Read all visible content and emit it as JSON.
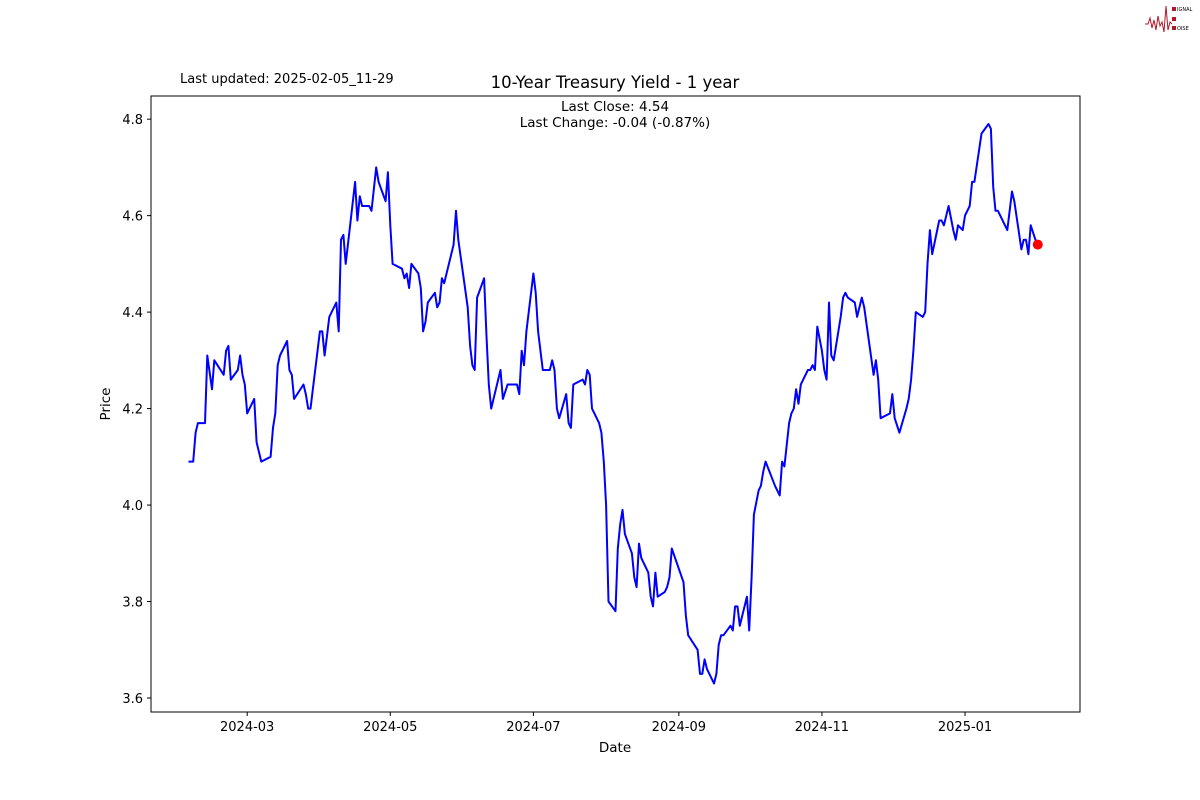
{
  "header": {
    "last_updated": "Last updated: 2025-02-05_11-29"
  },
  "logo": {
    "text": "SIGNAL 2 NOISE",
    "colors": {
      "primary": "#b0182a"
    }
  },
  "chart_data": {
    "type": "line",
    "title": "10-Year Treasury Yield - 1 year",
    "annotation": [
      "Last Close: 4.54",
      "Last Change: -0.04 (-0.87%)"
    ],
    "xlabel": "Date",
    "ylabel": "Price",
    "xlim": [
      "2024-01-20",
      "2025-02-19"
    ],
    "ylim": [
      3.571,
      4.848
    ],
    "grid": false,
    "line_color": "#0000ff",
    "marker_color": "#ff0000",
    "x_ticks": [
      "2024-03",
      "2024-05",
      "2024-07",
      "2024-09",
      "2024-11",
      "2025-01"
    ],
    "y_ticks": [
      "3.6",
      "3.8",
      "4.0",
      "4.2",
      "4.4",
      "4.6",
      "4.8"
    ],
    "last_point": {
      "date": "2025-02-01",
      "value": 4.54
    },
    "series": [
      {
        "points": [
          [
            "2024-02-05",
            4.09
          ],
          [
            "2024-02-07",
            4.09
          ],
          [
            "2024-02-08",
            4.15
          ],
          [
            "2024-02-09",
            4.17
          ],
          [
            "2024-02-12",
            4.17
          ],
          [
            "2024-02-13",
            4.31
          ],
          [
            "2024-02-15",
            4.24
          ],
          [
            "2024-02-16",
            4.3
          ],
          [
            "2024-02-20",
            4.27
          ],
          [
            "2024-02-21",
            4.32
          ],
          [
            "2024-02-22",
            4.33
          ],
          [
            "2024-02-23",
            4.26
          ],
          [
            "2024-02-26",
            4.28
          ],
          [
            "2024-02-27",
            4.31
          ],
          [
            "2024-02-28",
            4.27
          ],
          [
            "2024-02-29",
            4.25
          ],
          [
            "2024-03-01",
            4.19
          ],
          [
            "2024-03-04",
            4.22
          ],
          [
            "2024-03-05",
            4.13
          ],
          [
            "2024-03-07",
            4.09
          ],
          [
            "2024-03-11",
            4.1
          ],
          [
            "2024-03-12",
            4.16
          ],
          [
            "2024-03-13",
            4.19
          ],
          [
            "2024-03-14",
            4.29
          ],
          [
            "2024-03-15",
            4.31
          ],
          [
            "2024-03-18",
            4.34
          ],
          [
            "2024-03-19",
            4.28
          ],
          [
            "2024-03-20",
            4.27
          ],
          [
            "2024-03-21",
            4.22
          ],
          [
            "2024-03-25",
            4.25
          ],
          [
            "2024-03-26",
            4.23
          ],
          [
            "2024-03-27",
            4.2
          ],
          [
            "2024-03-28",
            4.2
          ],
          [
            "2024-04-01",
            4.36
          ],
          [
            "2024-04-02",
            4.36
          ],
          [
            "2024-04-03",
            4.31
          ],
          [
            "2024-04-05",
            4.39
          ],
          [
            "2024-04-08",
            4.42
          ],
          [
            "2024-04-09",
            4.36
          ],
          [
            "2024-04-10",
            4.55
          ],
          [
            "2024-04-11",
            4.56
          ],
          [
            "2024-04-12",
            4.5
          ],
          [
            "2024-04-16",
            4.67
          ],
          [
            "2024-04-17",
            4.59
          ],
          [
            "2024-04-18",
            4.64
          ],
          [
            "2024-04-19",
            4.62
          ],
          [
            "2024-04-22",
            4.62
          ],
          [
            "2024-04-23",
            4.61
          ],
          [
            "2024-04-25",
            4.7
          ],
          [
            "2024-04-26",
            4.67
          ],
          [
            "2024-04-29",
            4.63
          ],
          [
            "2024-04-30",
            4.69
          ],
          [
            "2024-05-01",
            4.58
          ],
          [
            "2024-05-02",
            4.5
          ],
          [
            "2024-05-06",
            4.49
          ],
          [
            "2024-05-07",
            4.47
          ],
          [
            "2024-05-08",
            4.48
          ],
          [
            "2024-05-09",
            4.45
          ],
          [
            "2024-05-10",
            4.5
          ],
          [
            "2024-05-13",
            4.48
          ],
          [
            "2024-05-14",
            4.45
          ],
          [
            "2024-05-15",
            4.36
          ],
          [
            "2024-05-16",
            4.38
          ],
          [
            "2024-05-17",
            4.42
          ],
          [
            "2024-05-20",
            4.44
          ],
          [
            "2024-05-21",
            4.41
          ],
          [
            "2024-05-22",
            4.42
          ],
          [
            "2024-05-23",
            4.47
          ],
          [
            "2024-05-24",
            4.46
          ],
          [
            "2024-05-28",
            4.54
          ],
          [
            "2024-05-29",
            4.61
          ],
          [
            "2024-05-30",
            4.55
          ],
          [
            "2024-06-03",
            4.41
          ],
          [
            "2024-06-04",
            4.33
          ],
          [
            "2024-06-05",
            4.29
          ],
          [
            "2024-06-06",
            4.28
          ],
          [
            "2024-06-07",
            4.43
          ],
          [
            "2024-06-10",
            4.47
          ],
          [
            "2024-06-11",
            4.35
          ],
          [
            "2024-06-12",
            4.25
          ],
          [
            "2024-06-13",
            4.2
          ],
          [
            "2024-06-17",
            4.28
          ],
          [
            "2024-06-18",
            4.22
          ],
          [
            "2024-06-20",
            4.25
          ],
          [
            "2024-06-24",
            4.25
          ],
          [
            "2024-06-25",
            4.23
          ],
          [
            "2024-06-26",
            4.32
          ],
          [
            "2024-06-27",
            4.29
          ],
          [
            "2024-06-28",
            4.36
          ],
          [
            "2024-07-01",
            4.48
          ],
          [
            "2024-07-02",
            4.44
          ],
          [
            "2024-07-03",
            4.36
          ],
          [
            "2024-07-05",
            4.28
          ],
          [
            "2024-07-08",
            4.28
          ],
          [
            "2024-07-09",
            4.3
          ],
          [
            "2024-07-10",
            4.28
          ],
          [
            "2024-07-11",
            4.2
          ],
          [
            "2024-07-12",
            4.18
          ],
          [
            "2024-07-15",
            4.23
          ],
          [
            "2024-07-16",
            4.17
          ],
          [
            "2024-07-17",
            4.16
          ],
          [
            "2024-07-18",
            4.25
          ],
          [
            "2024-07-22",
            4.26
          ],
          [
            "2024-07-23",
            4.25
          ],
          [
            "2024-07-24",
            4.28
          ],
          [
            "2024-07-25",
            4.27
          ],
          [
            "2024-07-26",
            4.2
          ],
          [
            "2024-07-29",
            4.17
          ],
          [
            "2024-07-30",
            4.15
          ],
          [
            "2024-07-31",
            4.09
          ],
          [
            "2024-08-01",
            4.0
          ],
          [
            "2024-08-02",
            3.8
          ],
          [
            "2024-08-05",
            3.78
          ],
          [
            "2024-08-06",
            3.91
          ],
          [
            "2024-08-07",
            3.96
          ],
          [
            "2024-08-08",
            3.99
          ],
          [
            "2024-08-09",
            3.94
          ],
          [
            "2024-08-12",
            3.9
          ],
          [
            "2024-08-13",
            3.85
          ],
          [
            "2024-08-14",
            3.83
          ],
          [
            "2024-08-15",
            3.92
          ],
          [
            "2024-08-16",
            3.89
          ],
          [
            "2024-08-19",
            3.86
          ],
          [
            "2024-08-20",
            3.81
          ],
          [
            "2024-08-21",
            3.79
          ],
          [
            "2024-08-22",
            3.86
          ],
          [
            "2024-08-23",
            3.81
          ],
          [
            "2024-08-26",
            3.82
          ],
          [
            "2024-08-27",
            3.83
          ],
          [
            "2024-08-28",
            3.85
          ],
          [
            "2024-08-29",
            3.91
          ],
          [
            "2024-09-03",
            3.84
          ],
          [
            "2024-09-04",
            3.77
          ],
          [
            "2024-09-05",
            3.73
          ],
          [
            "2024-09-09",
            3.7
          ],
          [
            "2024-09-10",
            3.65
          ],
          [
            "2024-09-11",
            3.65
          ],
          [
            "2024-09-12",
            3.68
          ],
          [
            "2024-09-13",
            3.66
          ],
          [
            "2024-09-16",
            3.63
          ],
          [
            "2024-09-17",
            3.65
          ],
          [
            "2024-09-18",
            3.71
          ],
          [
            "2024-09-19",
            3.73
          ],
          [
            "2024-09-20",
            3.73
          ],
          [
            "2024-09-23",
            3.75
          ],
          [
            "2024-09-24",
            3.74
          ],
          [
            "2024-09-25",
            3.79
          ],
          [
            "2024-09-26",
            3.79
          ],
          [
            "2024-09-27",
            3.75
          ],
          [
            "2024-09-30",
            3.81
          ],
          [
            "2024-10-01",
            3.74
          ],
          [
            "2024-10-02",
            3.85
          ],
          [
            "2024-10-03",
            3.98
          ],
          [
            "2024-10-05",
            4.03
          ],
          [
            "2024-10-06",
            4.04
          ],
          [
            "2024-10-07",
            4.07
          ],
          [
            "2024-10-08",
            4.09
          ],
          [
            "2024-10-12",
            4.04
          ],
          [
            "2024-10-14",
            4.02
          ],
          [
            "2024-10-15",
            4.09
          ],
          [
            "2024-10-16",
            4.08
          ],
          [
            "2024-10-18",
            4.17
          ],
          [
            "2024-10-19",
            4.19
          ],
          [
            "2024-10-20",
            4.2
          ],
          [
            "2024-10-21",
            4.24
          ],
          [
            "2024-10-22",
            4.21
          ],
          [
            "2024-10-23",
            4.25
          ],
          [
            "2024-10-26",
            4.28
          ],
          [
            "2024-10-27",
            4.28
          ],
          [
            "2024-10-28",
            4.29
          ],
          [
            "2024-10-29",
            4.28
          ],
          [
            "2024-10-30",
            4.37
          ],
          [
            "2024-11-01",
            4.32
          ],
          [
            "2024-11-02",
            4.28
          ],
          [
            "2024-11-03",
            4.26
          ],
          [
            "2024-11-04",
            4.42
          ],
          [
            "2024-11-05",
            4.31
          ],
          [
            "2024-11-06",
            4.3
          ],
          [
            "2024-11-09",
            4.39
          ],
          [
            "2024-11-10",
            4.43
          ],
          [
            "2024-11-11",
            4.44
          ],
          [
            "2024-11-12",
            4.43
          ],
          [
            "2024-11-15",
            4.42
          ],
          [
            "2024-11-16",
            4.39
          ],
          [
            "2024-11-18",
            4.43
          ],
          [
            "2024-11-19",
            4.41
          ],
          [
            "2024-11-23",
            4.27
          ],
          [
            "2024-11-24",
            4.3
          ],
          [
            "2024-11-25",
            4.26
          ],
          [
            "2024-11-26",
            4.18
          ],
          [
            "2024-11-30",
            4.19
          ],
          [
            "2024-12-01",
            4.23
          ],
          [
            "2024-12-02",
            4.18
          ],
          [
            "2024-12-04",
            4.15
          ],
          [
            "2024-12-07",
            4.2
          ],
          [
            "2024-12-08",
            4.22
          ],
          [
            "2024-12-09",
            4.26
          ],
          [
            "2024-12-10",
            4.32
          ],
          [
            "2024-12-11",
            4.4
          ],
          [
            "2024-12-14",
            4.39
          ],
          [
            "2024-12-15",
            4.4
          ],
          [
            "2024-12-16",
            4.5
          ],
          [
            "2024-12-17",
            4.57
          ],
          [
            "2024-12-18",
            4.52
          ],
          [
            "2024-12-21",
            4.59
          ],
          [
            "2024-12-22",
            4.59
          ],
          [
            "2024-12-23",
            4.58
          ],
          [
            "2024-12-25",
            4.62
          ],
          [
            "2024-12-27",
            4.57
          ],
          [
            "2024-12-28",
            4.55
          ],
          [
            "2024-12-29",
            4.58
          ],
          [
            "2024-12-31",
            4.57
          ],
          [
            "2025-01-01",
            4.6
          ],
          [
            "2025-01-03",
            4.62
          ],
          [
            "2025-01-04",
            4.67
          ],
          [
            "2025-01-05",
            4.67
          ],
          [
            "2025-01-08",
            4.77
          ],
          [
            "2025-01-11",
            4.79
          ],
          [
            "2025-01-12",
            4.78
          ],
          [
            "2025-01-13",
            4.66
          ],
          [
            "2025-01-14",
            4.61
          ],
          [
            "2025-01-15",
            4.61
          ],
          [
            "2025-01-19",
            4.57
          ],
          [
            "2025-01-21",
            4.65
          ],
          [
            "2025-01-22",
            4.63
          ],
          [
            "2025-01-25",
            4.53
          ],
          [
            "2025-01-26",
            4.55
          ],
          [
            "2025-01-27",
            4.55
          ],
          [
            "2025-01-28",
            4.52
          ],
          [
            "2025-01-29",
            4.58
          ],
          [
            "2025-01-31",
            4.55
          ],
          [
            "2025-02-01",
            4.54
          ]
        ]
      }
    ]
  }
}
